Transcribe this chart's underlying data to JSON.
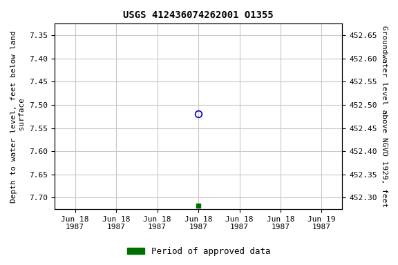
{
  "title": "USGS 412436074262001 O1355",
  "ylabel_left": "Depth to water level, feet below land\n surface",
  "ylabel_right": "Groundwater level above NGVD 1929, feet",
  "ylim_left": [
    7.725,
    7.325
  ],
  "ylim_right": [
    452.275,
    452.675
  ],
  "yticks_left": [
    7.35,
    7.4,
    7.45,
    7.5,
    7.55,
    7.6,
    7.65,
    7.7
  ],
  "yticks_right": [
    452.65,
    452.6,
    452.55,
    452.5,
    452.45,
    452.4,
    452.35,
    452.3
  ],
  "xlim": [
    -0.5,
    6.5
  ],
  "xtick_labels": [
    "Jun 18\n1987",
    "Jun 18\n1987",
    "Jun 18\n1987",
    "Jun 18\n1987",
    "Jun 18\n1987",
    "Jun 18\n1987",
    "Jun 19\n1987"
  ],
  "xtick_positions": [
    0,
    1,
    2,
    3,
    4,
    5,
    6
  ],
  "point_open_x": 3.0,
  "point_open_y": 7.52,
  "point_open_color": "#0000bb",
  "point_square_x": 3.0,
  "point_square_y": 7.718,
  "point_square_color": "#007000",
  "legend_label": "Period of approved data",
  "legend_color": "#007000",
  "background_color": "#ffffff",
  "grid_color": "#c8c8c8",
  "title_fontsize": 10,
  "axis_label_fontsize": 8,
  "tick_fontsize": 8,
  "legend_fontsize": 9
}
